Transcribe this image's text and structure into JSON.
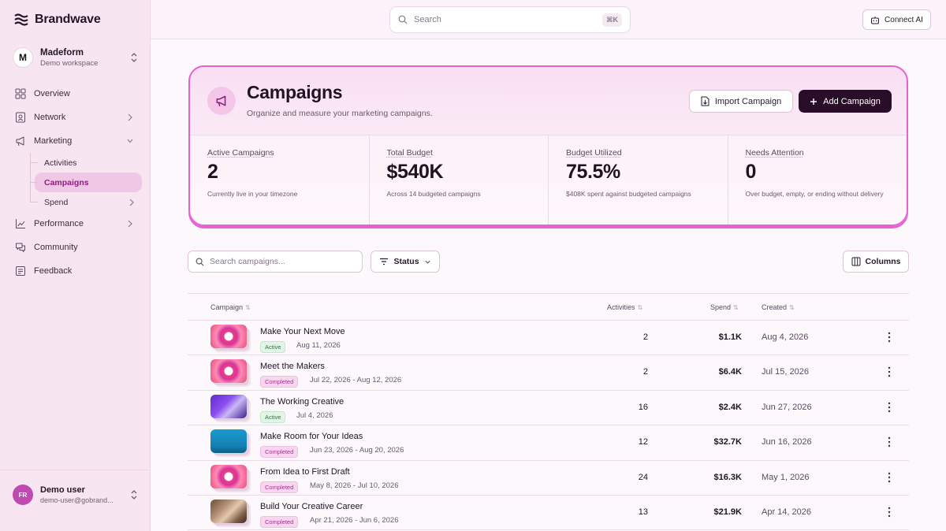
{
  "brand": {
    "name": "Brandwave"
  },
  "workspace": {
    "name": "Madeform",
    "subtitle": "Demo workspace",
    "logo_text": "M"
  },
  "nav": {
    "items": [
      {
        "label": "Overview",
        "icon": "grid-icon"
      },
      {
        "label": "Network",
        "icon": "contact-card-icon"
      },
      {
        "label": "Marketing",
        "icon": "megaphone-icon"
      }
    ],
    "sub_items": [
      {
        "label": "Activities"
      },
      {
        "label": "Campaigns"
      },
      {
        "label": "Spend"
      }
    ],
    "lower_items": [
      {
        "label": "Performance",
        "icon": "chart-line-icon"
      },
      {
        "label": "Community",
        "icon": "chat-bubbles-icon"
      },
      {
        "label": "Feedback",
        "icon": "feedback-icon"
      }
    ]
  },
  "user": {
    "initials": "FR",
    "name": "Demo user",
    "email": "demo-user@gobrand..."
  },
  "topbar": {
    "search_placeholder": "Search",
    "shortcut": "⌘K",
    "connect_ai_label": "Connect AI"
  },
  "hero": {
    "title": "Campaigns",
    "subtitle": "Organize and measure your marketing campaigns.",
    "import_label": "Import Campaign",
    "add_label": "Add Campaign"
  },
  "stats": [
    {
      "label": "Active Campaigns",
      "value": "2",
      "note": "Currently live in your timezone"
    },
    {
      "label": "Total Budget",
      "value": "$540K",
      "note": "Across 14 budgeted campaigns"
    },
    {
      "label": "Budget Utilized",
      "value": "75.5%",
      "note": "$408K spent against budgeted campaigns"
    },
    {
      "label": "Needs Attention",
      "value": "0",
      "note": "Over budget, empty, or ending without delivery"
    }
  ],
  "toolbar": {
    "search_placeholder": "Search campaigns...",
    "status_label": "Status",
    "columns_label": "Columns"
  },
  "table": {
    "headers": {
      "campaign": "Campaign",
      "activities": "Activities",
      "spend": "Spend",
      "created": "Created"
    },
    "rows": [
      {
        "name": "Make Your Next Move",
        "status": "Active",
        "dates": "Aug 11, 2026",
        "activities": "2",
        "spend": "$1.1K",
        "created": "Aug 4, 2026",
        "thumb": "pink"
      },
      {
        "name": "Meet the Makers",
        "status": "Completed",
        "dates": "Jul 22, 2026 - Aug 12, 2026",
        "activities": "2",
        "spend": "$6.4K",
        "created": "Jul 15, 2026",
        "thumb": "pink"
      },
      {
        "name": "The Working Creative",
        "status": "Active",
        "dates": "Jul 4, 2026",
        "activities": "16",
        "spend": "$2.4K",
        "created": "Jun 27, 2026",
        "thumb": "purple"
      },
      {
        "name": "Make Room for Your Ideas",
        "status": "Completed",
        "dates": "Jun 23, 2026 - Aug 20, 2026",
        "activities": "12",
        "spend": "$32.7K",
        "created": "Jun 16, 2026",
        "thumb": "teal"
      },
      {
        "name": "From Idea to First Draft",
        "status": "Completed",
        "dates": "May 8, 2026 - Jul 10, 2026",
        "activities": "24",
        "spend": "$16.3K",
        "created": "May 1, 2026",
        "thumb": "pink"
      },
      {
        "name": "Build Your Creative Career",
        "status": "Completed",
        "dates": "Apr 21, 2026 - Jun 6, 2026",
        "activities": "13",
        "spend": "$21.9K",
        "created": "Apr 14, 2026",
        "thumb": "photo"
      }
    ]
  }
}
